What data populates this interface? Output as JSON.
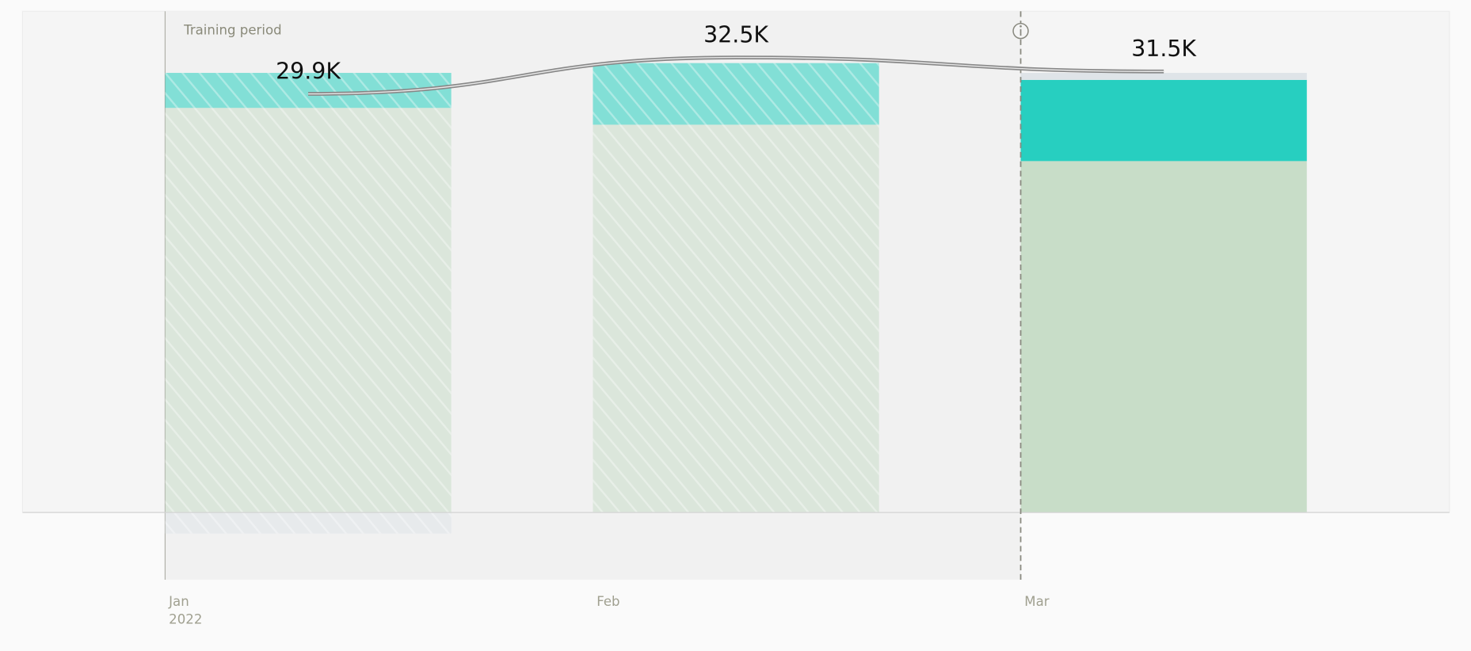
{
  "chart_data": {
    "type": "bar",
    "categories": [
      "Jan",
      "Feb",
      "Mar"
    ],
    "year_label": "2022",
    "training_period": {
      "label": "Training period",
      "end": "Mar"
    },
    "series": [
      {
        "color": "#c8ddc8",
        "values": [
          28900,
          27700,
          25100
        ]
      },
      {
        "color": "#27cfc0",
        "values": [
          2500,
          4400,
          5800
        ]
      },
      {
        "color": "#dfe4e8",
        "values": [
          -1500,
          0,
          500
        ]
      }
    ],
    "line": {
      "color": "#888888",
      "values": [
        29900,
        32500,
        31500
      ],
      "value_labels": [
        "29.9K",
        "32.5K",
        "31.5K"
      ]
    },
    "ylim": [
      -4800,
      35800
    ]
  }
}
